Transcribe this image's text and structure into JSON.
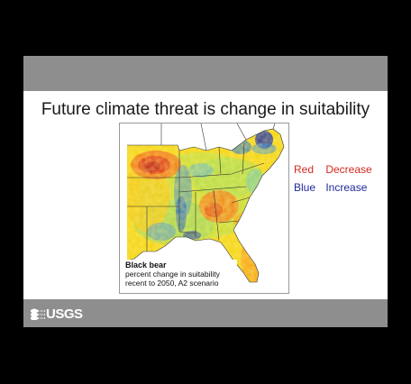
{
  "slide": {
    "title": "Future climate threat is change in suitability"
  },
  "map": {
    "caption": {
      "species": "Black bear",
      "line1": "percent change in suitability",
      "line2": "recent to 2050, A2 scenario"
    }
  },
  "legend": [
    {
      "key": "Red",
      "value": "Decrease",
      "color": "#d42a1f"
    },
    {
      "key": "Blue",
      "value": "Increase",
      "color": "#1f2a9a"
    }
  ],
  "footer": {
    "logo_text": "USGS"
  },
  "colors": {
    "background": "#000000",
    "band": "#8e8e8e",
    "decrease": "#d42a1f",
    "increase": "#1f2a9a"
  }
}
